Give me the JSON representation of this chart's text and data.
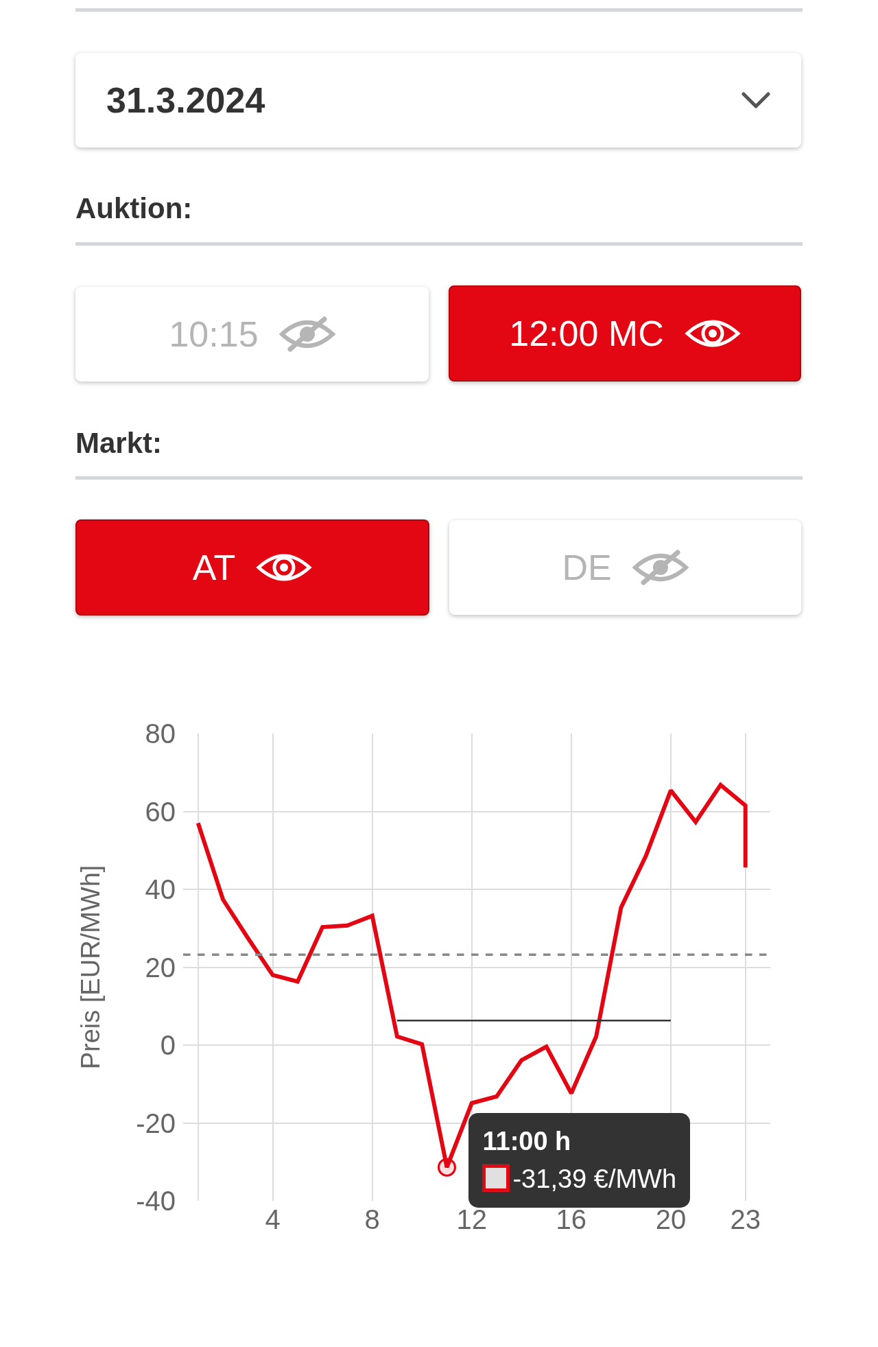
{
  "chart_data": {
    "type": "line",
    "ylabel": "Preis [EUR/MWh]",
    "x": [
      1,
      2,
      3,
      4,
      5,
      6,
      7,
      8,
      9,
      10,
      11,
      12,
      13,
      14,
      15,
      16,
      17,
      18,
      19,
      20,
      21,
      22,
      23,
      23
    ],
    "series": [
      {
        "color": "#e30613",
        "values": [
          57,
          37.4,
          27.5,
          18,
          16.3,
          30.3,
          30.7,
          33.2,
          2.2,
          0.2,
          -31.39,
          -14.9,
          -13.2,
          -3.9,
          -0.4,
          -12.4,
          2.2,
          35.3,
          48.6,
          65.4,
          57.3,
          66.8,
          61.5,
          45.6
        ]
      },
      {
        "type": "line",
        "color": "#333333",
        "x": [
          9,
          20
        ],
        "values": [
          6.3,
          6.3
        ]
      }
    ],
    "ref_lines": [
      {
        "axis": "y",
        "value": 23.2,
        "color": "#888888",
        "line_style": "dashed"
      }
    ],
    "xlim": [
      0.4,
      24
    ],
    "xticks": [
      {
        "value": 1,
        "label": null
      },
      4,
      8,
      12,
      16,
      20,
      23
    ],
    "ylim": [
      -40,
      80
    ],
    "yticks": [
      -40,
      -20,
      0,
      20,
      40,
      60,
      80
    ],
    "grid": true,
    "marker": "none",
    "line_style": "solid",
    "annotations": [
      "31.3.2024",
      "Auktion:",
      "10:15",
      "12:00 MC",
      "Markt:",
      "AT",
      "DE",
      {
        "text": "11:00 h",
        "x": 11,
        "y": -31.39
      },
      {
        "text": "-31,39 €/MWh",
        "x": 11,
        "y": -31.39
      }
    ]
  }
}
